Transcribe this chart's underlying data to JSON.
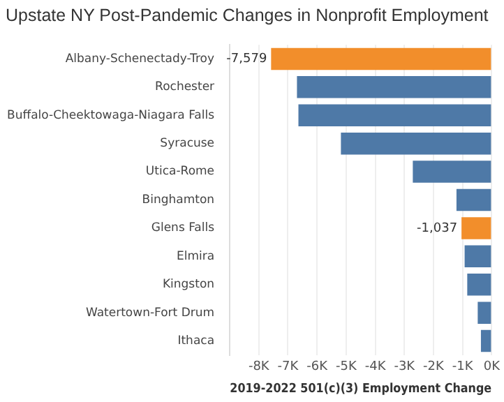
{
  "chart_data": {
    "type": "bar",
    "orientation": "horizontal",
    "title": "Upstate NY Post-Pandemic Changes in Nonprofit Employment",
    "xlabel": "2019-2022 501(c)(3) Employment Change",
    "categories": [
      "Albany-Schenectady-Troy",
      "Rochester",
      "Buffalo-Cheektowaga-Niagara Falls",
      "Syracuse",
      "Utica-Rome",
      "Binghamton",
      "Glens Falls",
      "Elmira",
      "Kingston",
      "Watertown-Fort Drum",
      "Ithaca"
    ],
    "values": [
      -7579,
      -6690,
      -6640,
      -5180,
      -2710,
      -1210,
      -1037,
      -930,
      -840,
      -480,
      -370
    ],
    "value_labels": [
      "-7,579",
      null,
      null,
      null,
      null,
      null,
      "-1,037",
      null,
      null,
      null,
      null
    ],
    "colors": [
      "#f28e2b",
      "#4e79a7",
      "#4e79a7",
      "#4e79a7",
      "#4e79a7",
      "#4e79a7",
      "#f28e2b",
      "#4e79a7",
      "#4e79a7",
      "#4e79a7",
      "#4e79a7"
    ],
    "xlim": [
      -9000,
      0
    ],
    "xticks": [
      {
        "value": -8000,
        "label": "-8K"
      },
      {
        "value": -7000,
        "label": "-7K"
      },
      {
        "value": -6000,
        "label": "-6K"
      },
      {
        "value": -5000,
        "label": "-5K"
      },
      {
        "value": -4000,
        "label": "-4K"
      },
      {
        "value": -3000,
        "label": "-3K"
      },
      {
        "value": -2000,
        "label": "-2K"
      },
      {
        "value": -1000,
        "label": "-1K"
      },
      {
        "value": 0,
        "label": "0K"
      }
    ],
    "grid": "x"
  }
}
